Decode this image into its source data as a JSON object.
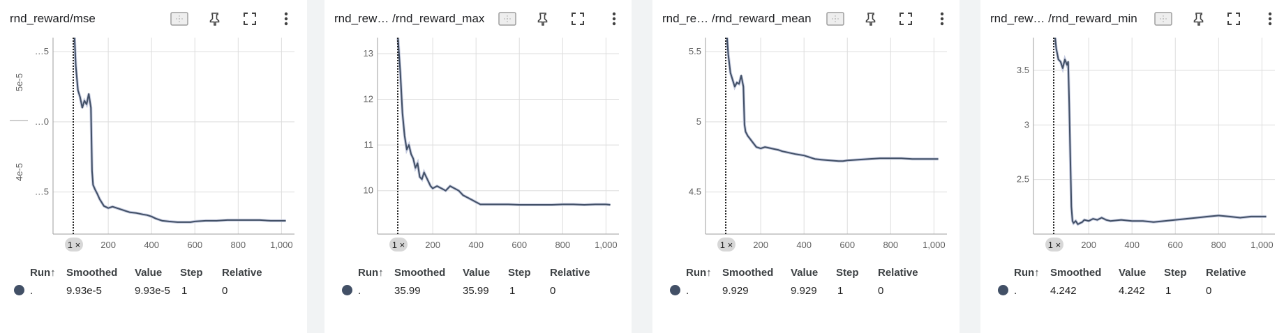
{
  "colors": {
    "accent": "#425066",
    "raw_line": "#c5cbe0",
    "grid": "#dddddd",
    "background": "#ffffff",
    "gutter": "#f1f3f4"
  },
  "icons": [
    "fit-domain-icon",
    "pin-icon",
    "fullscreen-icon",
    "more-vert-icon"
  ],
  "legend": {
    "headers": {
      "run": "Run",
      "sort_arrow": "↑",
      "smoothed": "Smoothed",
      "value": "Value",
      "step": "Step",
      "relative": "Relative"
    }
  },
  "badge_text": "1 ×",
  "chart_data": [
    {
      "type": "line",
      "title": "rnd_reward/mse",
      "x_ticks": [
        "200",
        "400",
        "600",
        "800",
        "1,000"
      ],
      "x_tick_values": [
        200,
        400,
        600,
        800,
        1000
      ],
      "y_ticks": [
        "…5",
        "…0",
        "…5"
      ],
      "y_tick_values": [
        4.15e-05,
        4.25e-05,
        4.35e-05
      ],
      "y_side_labels": [
        "5e-5",
        "4e-5"
      ],
      "xlim": [
        -55,
        1060
      ],
      "ylim": [
        4.09e-05,
        4.37e-05
      ],
      "grid": true,
      "series": [
        {
          "run": ".",
          "smoothed": "9.93e-5",
          "value": "9.93e-5",
          "step": "1",
          "relative": "0",
          "x": [
            40,
            50,
            60,
            70,
            80,
            90,
            100,
            110,
            120,
            125,
            130,
            140,
            150,
            160,
            170,
            180,
            200,
            220,
            250,
            280,
            300,
            330,
            360,
            380,
            400,
            420,
            450,
            480,
            520,
            560,
            580,
            600,
            650,
            700,
            750,
            800,
            850,
            900,
            950,
            1000,
            1020
          ],
          "y": [
            4.4e-05,
            4.33e-05,
            4.295e-05,
            4.285e-05,
            4.27e-05,
            4.28e-05,
            4.275e-05,
            4.29e-05,
            4.27e-05,
            4.18e-05,
            4.16e-05,
            4.153e-05,
            4.147e-05,
            4.14e-05,
            4.135e-05,
            4.13e-05,
            4.127e-05,
            4.129e-05,
            4.126e-05,
            4.123e-05,
            4.121e-05,
            4.12e-05,
            4.118e-05,
            4.117e-05,
            4.115e-05,
            4.112e-05,
            4.109e-05,
            4.108e-05,
            4.107e-05,
            4.107e-05,
            4.107e-05,
            4.108e-05,
            4.109e-05,
            4.109e-05,
            4.11e-05,
            4.11e-05,
            4.11e-05,
            4.11e-05,
            4.109e-05,
            4.109e-05,
            4.109e-05
          ]
        }
      ]
    },
    {
      "type": "line",
      "title": "rnd_rew… /rnd_reward_max",
      "x_ticks": [
        "200",
        "400",
        "600",
        "800",
        "1,000"
      ],
      "x_tick_values": [
        200,
        400,
        600,
        800,
        1000
      ],
      "y_ticks": [
        "13",
        "12",
        "11",
        "10"
      ],
      "y_tick_values": [
        13,
        12,
        11,
        10
      ],
      "xlim": [
        -55,
        1060
      ],
      "ylim": [
        9.05,
        13.35
      ],
      "grid": true,
      "series": [
        {
          "run": ".",
          "smoothed": "35.99",
          "value": "35.99",
          "step": "1",
          "relative": "0",
          "x": [
            30,
            40,
            50,
            60,
            70,
            80,
            90,
            100,
            110,
            120,
            130,
            140,
            150,
            160,
            170,
            180,
            190,
            200,
            220,
            240,
            260,
            280,
            300,
            320,
            340,
            360,
            380,
            400,
            420,
            450,
            500,
            550,
            600,
            650,
            700,
            750,
            800,
            850,
            900,
            950,
            1000,
            1020
          ],
          "y": [
            13.8,
            13.3,
            12.6,
            11.7,
            11.2,
            10.9,
            11.0,
            10.8,
            10.7,
            10.5,
            10.6,
            10.3,
            10.25,
            10.4,
            10.3,
            10.2,
            10.1,
            10.05,
            10.1,
            10.05,
            10.0,
            10.1,
            10.05,
            10.0,
            9.9,
            9.85,
            9.8,
            9.75,
            9.7,
            9.7,
            9.7,
            9.7,
            9.69,
            9.69,
            9.69,
            9.69,
            9.7,
            9.7,
            9.69,
            9.7,
            9.7,
            9.69
          ]
        }
      ]
    },
    {
      "type": "line",
      "title": "rnd_re… /rnd_reward_mean",
      "x_ticks": [
        "200",
        "400",
        "600",
        "800",
        "1,000"
      ],
      "x_tick_values": [
        200,
        400,
        600,
        800,
        1000
      ],
      "y_ticks": [
        "5.5",
        "5",
        "4.5"
      ],
      "y_tick_values": [
        5.5,
        5.0,
        4.5
      ],
      "xlim": [
        -55,
        1060
      ],
      "ylim": [
        4.2,
        5.6
      ],
      "grid": true,
      "series": [
        {
          "run": ".",
          "smoothed": "9.929",
          "value": "9.929",
          "step": "1",
          "relative": "0",
          "x": [
            40,
            50,
            60,
            70,
            80,
            90,
            100,
            110,
            120,
            125,
            130,
            140,
            150,
            160,
            170,
            180,
            200,
            220,
            250,
            280,
            300,
            330,
            360,
            380,
            400,
            420,
            450,
            480,
            520,
            560,
            580,
            600,
            650,
            700,
            750,
            800,
            850,
            900,
            950,
            1000,
            1020
          ],
          "y": [
            5.7,
            5.48,
            5.35,
            5.3,
            5.25,
            5.28,
            5.27,
            5.33,
            5.25,
            4.98,
            4.93,
            4.9,
            4.88,
            4.86,
            4.84,
            4.82,
            4.81,
            4.82,
            4.81,
            4.8,
            4.79,
            4.78,
            4.77,
            4.765,
            4.76,
            4.75,
            4.735,
            4.73,
            4.725,
            4.72,
            4.72,
            4.725,
            4.73,
            4.735,
            4.74,
            4.74,
            4.74,
            4.735,
            4.735,
            4.735,
            4.735
          ]
        }
      ]
    },
    {
      "type": "line",
      "title": "rnd_rew… /rnd_reward_min",
      "x_ticks": [
        "200",
        "400",
        "600",
        "800",
        "1,000"
      ],
      "x_tick_values": [
        200,
        400,
        600,
        800,
        1000
      ],
      "y_ticks": [
        "3.5",
        "3",
        "2.5"
      ],
      "y_tick_values": [
        3.5,
        3.0,
        2.5
      ],
      "xlim": [
        -55,
        1060
      ],
      "ylim": [
        2.0,
        3.8
      ],
      "grid": true,
      "series": [
        {
          "run": ".",
          "smoothed": "4.242",
          "value": "4.242",
          "step": "1",
          "relative": "0",
          "x": [
            40,
            50,
            60,
            70,
            80,
            90,
            100,
            105,
            110,
            115,
            120,
            125,
            130,
            140,
            150,
            160,
            170,
            180,
            200,
            220,
            240,
            260,
            280,
            300,
            350,
            400,
            450,
            500,
            550,
            600,
            650,
            700,
            750,
            800,
            850,
            900,
            950,
            1000,
            1020
          ],
          "y": [
            3.9,
            3.7,
            3.6,
            3.58,
            3.52,
            3.6,
            3.55,
            3.58,
            3.2,
            2.7,
            2.25,
            2.12,
            2.1,
            2.12,
            2.09,
            2.1,
            2.11,
            2.13,
            2.12,
            2.14,
            2.13,
            2.15,
            2.13,
            2.12,
            2.13,
            2.12,
            2.12,
            2.11,
            2.12,
            2.13,
            2.14,
            2.15,
            2.16,
            2.17,
            2.16,
            2.15,
            2.16,
            2.16,
            2.16
          ]
        }
      ]
    }
  ]
}
